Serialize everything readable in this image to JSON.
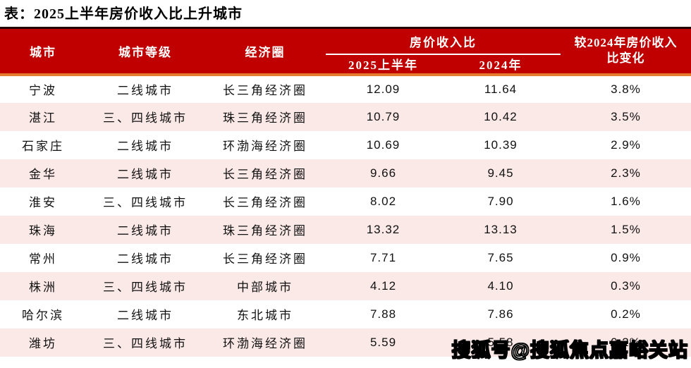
{
  "title": "表：2025上半年房价收入比上升城市",
  "watermark": "搜狐号@搜狐焦点嘉峪关站",
  "colors": {
    "header_red": "#C00000",
    "header_top_border": "#240000",
    "header_bottom_border_orange": "#E87C2E",
    "row_alt_pink": "#FBE9E7",
    "header_text": "#FFFFFF"
  },
  "chart_data": {
    "type": "table",
    "title": "表：2025上半年房价收入比上升城市",
    "group_header": {
      "label": "房价收入比",
      "spans": [
        "2025上半年",
        "2024年"
      ]
    },
    "columns": [
      "城市",
      "城市等级",
      "经济圈",
      "2025上半年",
      "2024年",
      "较2024年房价收入比变化"
    ],
    "rows": [
      [
        "宁波",
        "二线城市",
        "长三角经济圈",
        "12.09",
        "11.64",
        "3.8%"
      ],
      [
        "湛江",
        "三、四线城市",
        "珠三角经济圈",
        "10.79",
        "10.42",
        "3.5%"
      ],
      [
        "石家庄",
        "二线城市",
        "环渤海经济圈",
        "10.69",
        "10.39",
        "2.9%"
      ],
      [
        "金华",
        "二线城市",
        "长三角经济圈",
        "9.66",
        "9.45",
        "2.3%"
      ],
      [
        "淮安",
        "三、四线城市",
        "长三角经济圈",
        "8.02",
        "7.90",
        "1.6%"
      ],
      [
        "珠海",
        "二线城市",
        "珠三角经济圈",
        "13.32",
        "13.13",
        "1.5%"
      ],
      [
        "常州",
        "二线城市",
        "长三角经济圈",
        "7.71",
        "7.65",
        "0.9%"
      ],
      [
        "株洲",
        "三、四线城市",
        "中部城市",
        "4.12",
        "4.10",
        "0.3%"
      ],
      [
        "哈尔滨",
        "二线城市",
        "东北城市",
        "7.88",
        "7.86",
        "0.2%"
      ],
      [
        "潍坊",
        "三、四线城市",
        "环渤海经济圈",
        "5.59",
        "5.58",
        "0.2%"
      ]
    ]
  }
}
